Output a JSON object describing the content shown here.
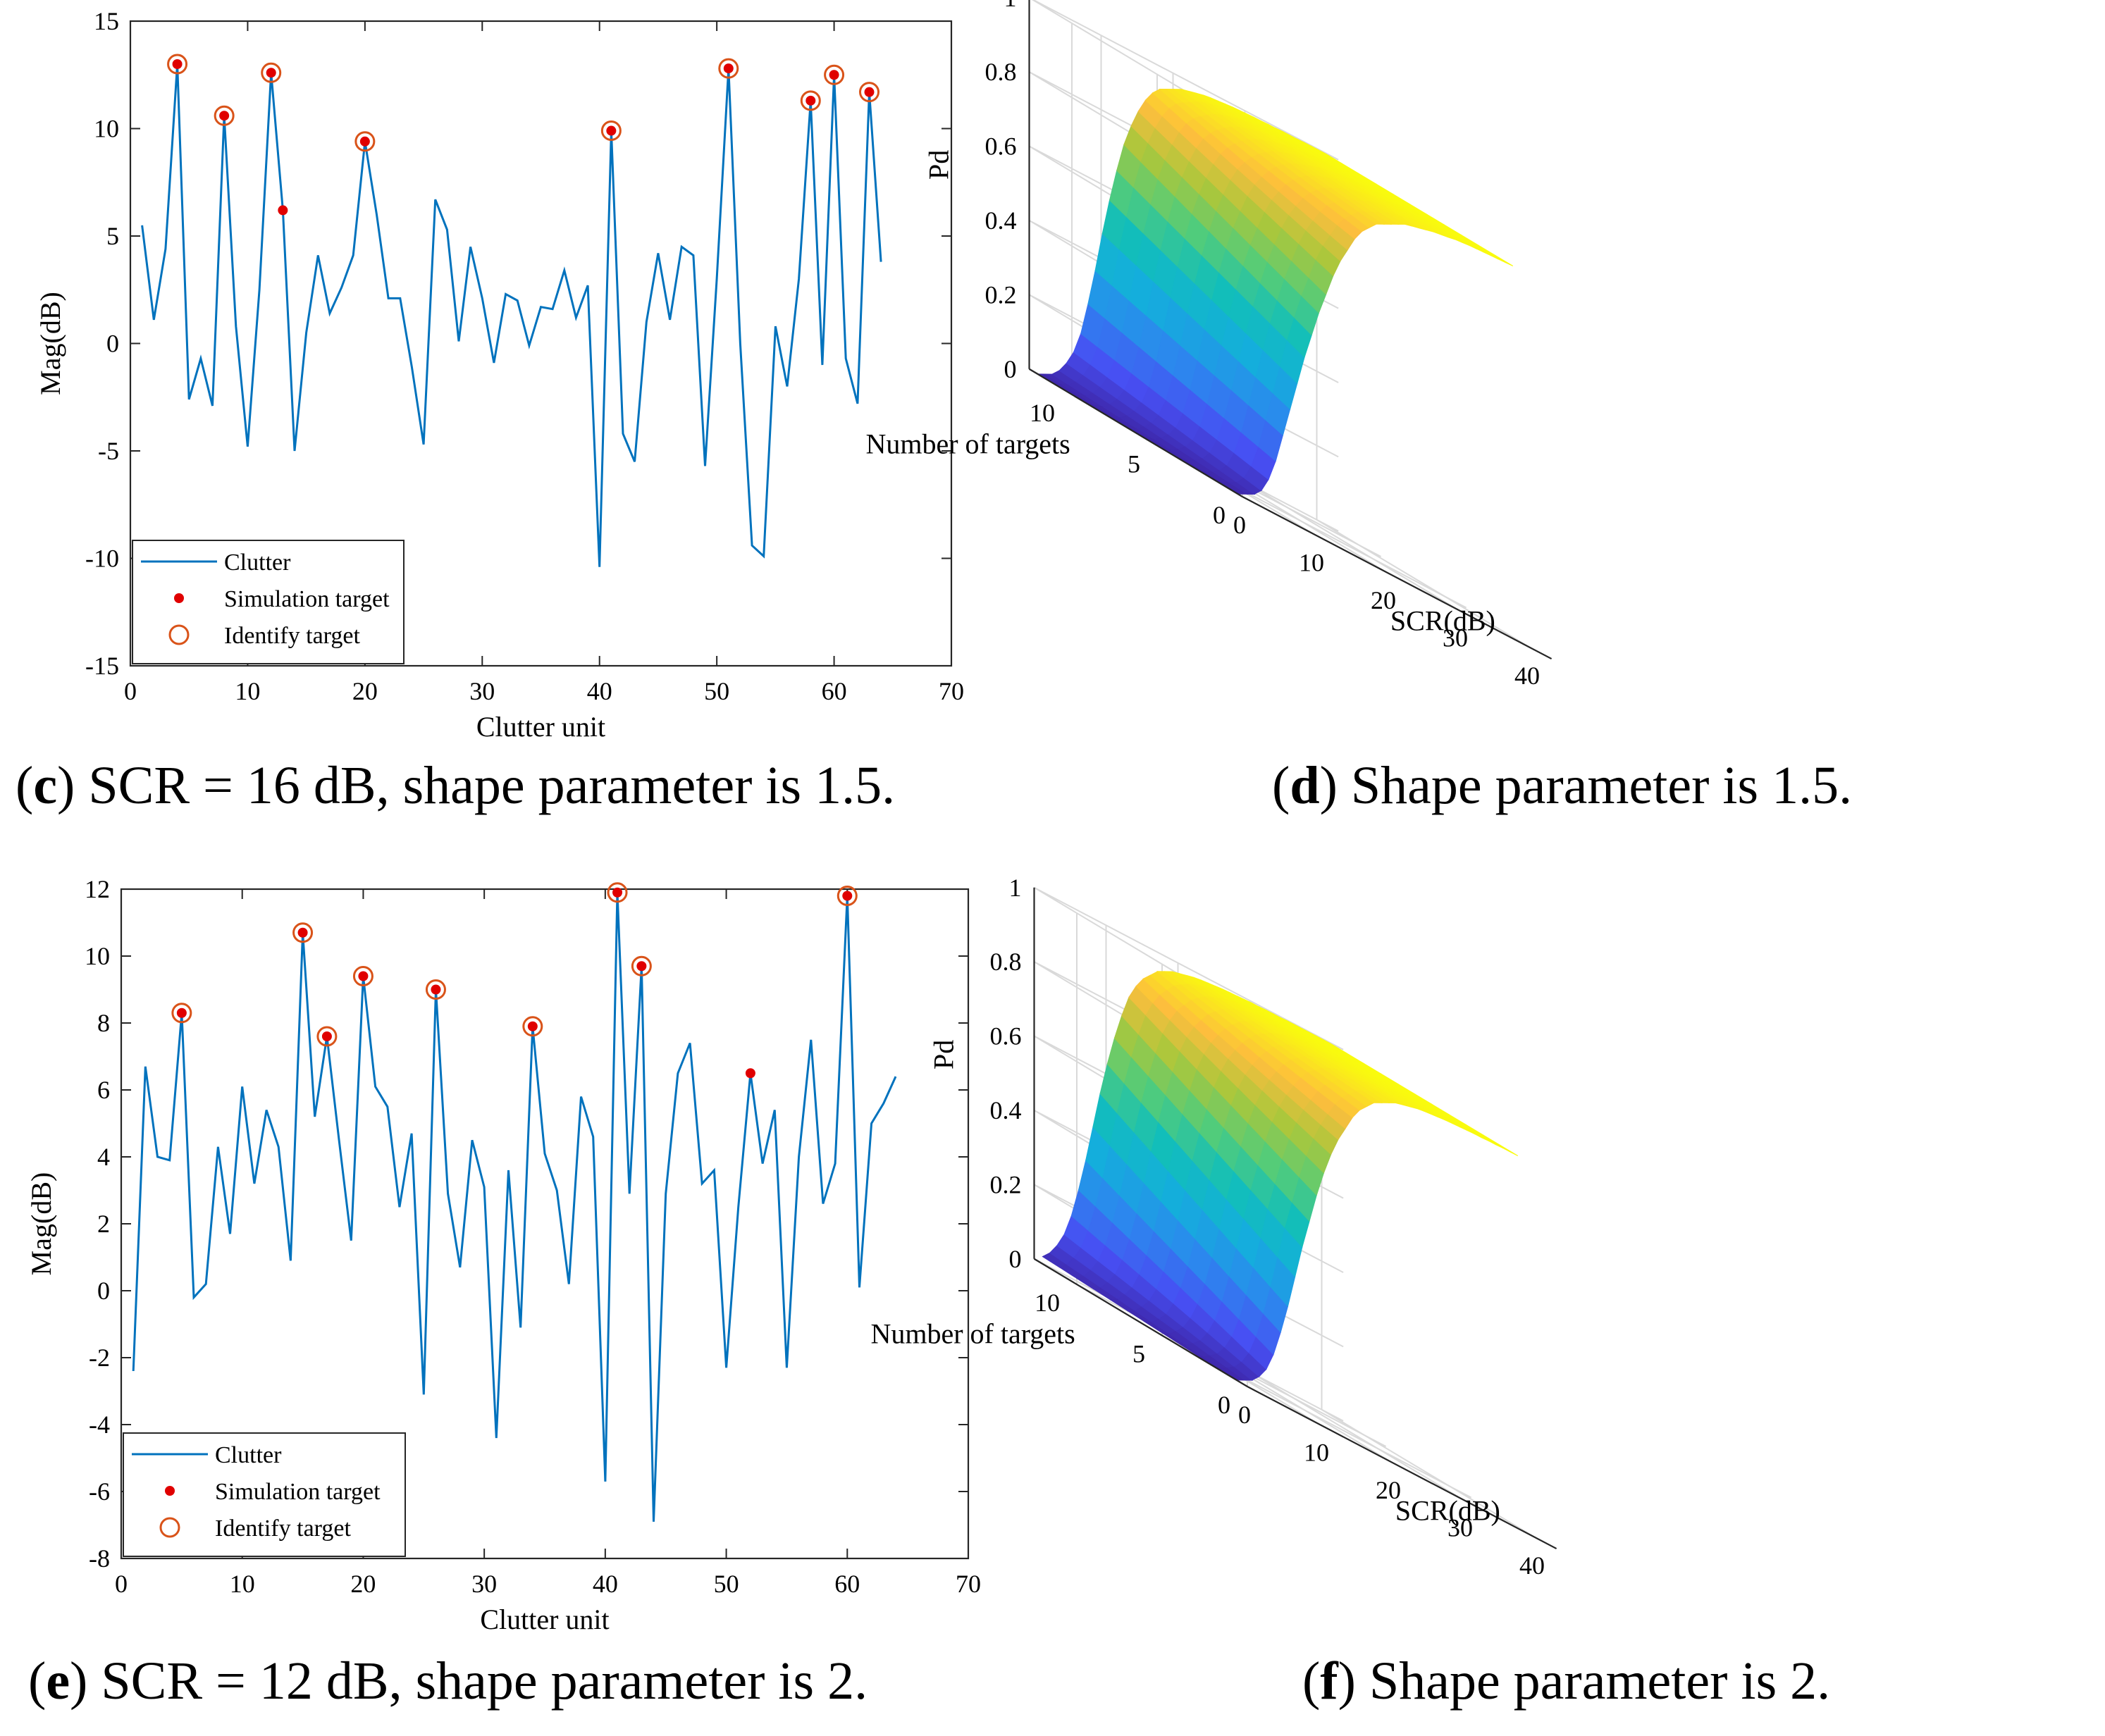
{
  "colors": {
    "clutter": "#0072BD",
    "simulation_target": "#E00000",
    "identify_target": "#D95319",
    "axis": "#262626",
    "grid": "#d9d9d9"
  },
  "captions": {
    "c": {
      "letter": "c",
      "text": " SCR = 16 dB, shape parameter is 1.5."
    },
    "d": {
      "letter": "d",
      "text": " Shape parameter is 1.5."
    },
    "e": {
      "letter": "e",
      "text": " SCR = 12 dB, shape parameter is 2."
    },
    "f": {
      "letter": "f",
      "text": " Shape parameter is 2."
    }
  },
  "chart_data": [
    {
      "id": "c",
      "type": "line",
      "xlabel": "Clutter unit",
      "ylabel": "Mag(dB)",
      "xlim": [
        0,
        70
      ],
      "ylim": [
        -15,
        15
      ],
      "xticks": [
        0,
        10,
        20,
        30,
        40,
        50,
        60,
        70
      ],
      "yticks": [
        -15,
        -10,
        -5,
        0,
        5,
        10,
        15
      ],
      "legend": {
        "position": "bottom-left",
        "entries": [
          "Clutter",
          "Simulation target",
          "Identify target"
        ]
      },
      "series": [
        {
          "name": "Clutter",
          "x": [
            1,
            2,
            3,
            4,
            5,
            6,
            7,
            8,
            9,
            10,
            11,
            12,
            13,
            14,
            15,
            16,
            17,
            18,
            19,
            20,
            21,
            22,
            23,
            24,
            25,
            26,
            27,
            28,
            29,
            30,
            31,
            32,
            33,
            34,
            35,
            36,
            37,
            38,
            39,
            40,
            41,
            42,
            43,
            44,
            45,
            46,
            47,
            48,
            49,
            50,
            51,
            52,
            53,
            54,
            55,
            56,
            57,
            58,
            59,
            60,
            61,
            62,
            63,
            64
          ],
          "y": [
            5.5,
            1.1,
            4.4,
            13.0,
            -2.6,
            -0.7,
            -2.9,
            10.6,
            0.8,
            -4.8,
            2.5,
            12.6,
            6.2,
            -5.0,
            0.5,
            4.1,
            1.4,
            2.6,
            4.1,
            9.4,
            6.0,
            2.1,
            2.1,
            -1.1,
            -4.7,
            6.7,
            5.3,
            0.1,
            4.5,
            2.1,
            -0.9,
            2.3,
            2.0,
            -0.1,
            1.7,
            1.6,
            3.4,
            1.2,
            2.7,
            -10.4,
            9.9,
            -4.2,
            -5.5,
            1.0,
            4.2,
            1.1,
            4.5,
            4.1,
            -5.7,
            3.0,
            12.8,
            0.0,
            -9.4,
            -9.9,
            0.8,
            -2.0,
            3.0,
            11.3,
            -1.0,
            12.5,
            -0.7,
            -2.8,
            11.7,
            3.8
          ]
        },
        {
          "name": "Simulation target",
          "x": [
            4,
            8,
            12,
            13,
            20,
            41,
            51,
            58,
            60,
            63
          ],
          "y": [
            13.0,
            10.6,
            12.6,
            6.2,
            9.4,
            9.9,
            12.8,
            11.3,
            12.5,
            11.7
          ]
        },
        {
          "name": "Identify target",
          "x": [
            4,
            8,
            12,
            20,
            41,
            51,
            58,
            60,
            63
          ],
          "y": [
            13.0,
            10.6,
            12.6,
            9.4,
            9.9,
            12.8,
            11.3,
            12.5,
            11.7
          ]
        }
      ]
    },
    {
      "id": "d",
      "type": "surface",
      "zlabel": "Pd",
      "xlabel": "SCR(dB)",
      "ylabel": "Number of targets",
      "xticks": [
        0,
        10,
        20,
        30,
        40
      ],
      "yticks": [
        0,
        5,
        10
      ],
      "zticks": [
        0,
        0.2,
        0.4,
        0.6,
        0.8,
        1
      ],
      "scr_values": [
        0,
        1,
        2,
        3,
        4,
        5,
        6,
        7,
        8,
        9,
        10,
        11,
        12,
        13,
        14,
        15,
        16,
        17,
        18,
        19,
        20,
        21,
        22,
        23,
        24,
        25,
        26,
        27,
        28,
        29,
        30,
        31,
        32,
        33,
        34,
        35,
        36,
        37,
        38,
        39,
        40
      ],
      "num_targets": [
        1,
        12
      ],
      "pd_near": [
        0.0,
        0.0,
        0.0,
        0.01,
        0.02,
        0.04,
        0.08,
        0.14,
        0.22,
        0.3,
        0.38,
        0.46,
        0.53,
        0.6,
        0.66,
        0.72,
        0.77,
        0.81,
        0.85,
        0.88,
        0.9,
        0.92,
        0.93,
        0.94,
        0.95,
        0.96,
        0.965,
        0.97,
        0.975,
        0.98,
        0.983,
        0.986,
        0.99,
        0.992,
        0.994,
        0.995,
        0.996,
        0.997,
        0.998,
        0.999,
        1.0
      ],
      "pd_far": [
        0.0,
        0.01,
        0.02,
        0.04,
        0.07,
        0.11,
        0.17,
        0.26,
        0.36,
        0.47,
        0.57,
        0.66,
        0.74,
        0.8,
        0.85,
        0.89,
        0.92,
        0.94,
        0.95,
        0.96,
        0.97,
        0.975,
        0.98,
        0.985,
        0.988,
        0.99,
        0.992,
        0.994,
        0.995,
        0.996,
        0.997,
        0.997,
        0.998,
        0.998,
        0.999,
        0.999,
        0.999,
        1.0,
        1.0,
        1.0,
        1.0
      ]
    },
    {
      "id": "e",
      "type": "line",
      "xlabel": "Clutter unit",
      "ylabel": "Mag(dB)",
      "xlim": [
        0,
        70
      ],
      "ylim": [
        -8,
        12
      ],
      "xticks": [
        0,
        10,
        20,
        30,
        40,
        50,
        60,
        70
      ],
      "yticks": [
        -8,
        -6,
        -4,
        -2,
        0,
        2,
        4,
        6,
        8,
        10,
        12
      ],
      "legend": {
        "position": "bottom-left",
        "entries": [
          "Clutter",
          "Simulation target",
          "Identify target"
        ]
      },
      "series": [
        {
          "name": "Clutter",
          "x": [
            1,
            2,
            3,
            4,
            5,
            6,
            7,
            8,
            9,
            10,
            11,
            12,
            13,
            14,
            15,
            16,
            17,
            18,
            19,
            20,
            21,
            22,
            23,
            24,
            25,
            26,
            27,
            28,
            29,
            30,
            31,
            32,
            33,
            34,
            35,
            36,
            37,
            38,
            39,
            40,
            41,
            42,
            43,
            44,
            45,
            46,
            47,
            48,
            49,
            50,
            51,
            52,
            53,
            54,
            55,
            56,
            57,
            58,
            59,
            60,
            61,
            62,
            63,
            64
          ],
          "y": [
            -2.4,
            6.7,
            4.0,
            3.9,
            8.3,
            -0.2,
            0.2,
            4.3,
            1.7,
            6.1,
            3.2,
            5.4,
            4.3,
            0.9,
            10.7,
            5.2,
            7.6,
            4.5,
            1.5,
            9.4,
            6.1,
            5.5,
            2.5,
            4.7,
            -3.1,
            9.0,
            2.9,
            0.7,
            4.5,
            3.1,
            -4.4,
            3.6,
            -1.1,
            7.9,
            4.1,
            3.0,
            0.2,
            5.8,
            4.6,
            -5.7,
            11.9,
            2.9,
            9.7,
            -6.9,
            2.9,
            6.5,
            7.4,
            3.2,
            3.6,
            -2.3,
            2.5,
            6.5,
            3.8,
            5.4,
            -2.3,
            4.0,
            7.5,
            2.6,
            3.8,
            11.8,
            0.1,
            5.0,
            5.6,
            6.4
          ]
        },
        {
          "name": "Simulation target",
          "x": [
            5,
            15,
            17,
            20,
            26,
            34,
            41,
            43,
            52,
            60
          ],
          "y": [
            8.3,
            10.7,
            7.6,
            9.4,
            9.0,
            7.9,
            11.9,
            9.7,
            6.5,
            11.8
          ]
        },
        {
          "name": "Identify target",
          "x": [
            5,
            15,
            17,
            20,
            26,
            34,
            41,
            43,
            60
          ],
          "y": [
            8.3,
            10.7,
            7.6,
            9.4,
            9.0,
            7.9,
            11.9,
            9.7,
            11.8
          ]
        }
      ]
    },
    {
      "id": "f",
      "type": "surface",
      "zlabel": "Pd",
      "xlabel": "SCR(dB)",
      "ylabel": "Number of targets",
      "xticks": [
        0,
        10,
        20,
        30,
        40
      ],
      "yticks": [
        0,
        5,
        10
      ],
      "zticks": [
        0,
        0.2,
        0.4,
        0.6,
        0.8,
        1
      ],
      "scr_values": [
        0,
        1,
        2,
        3,
        4,
        5,
        6,
        7,
        8,
        9,
        10,
        11,
        12,
        13,
        14,
        15,
        16,
        17,
        18,
        19,
        20,
        21,
        22,
        23,
        24,
        25,
        26,
        27,
        28,
        29,
        30,
        31,
        32,
        33,
        34,
        35,
        36,
        37,
        38,
        39,
        40
      ],
      "num_targets": [
        1,
        12
      ],
      "pd_near": [
        0.0,
        0.0,
        0.01,
        0.02,
        0.04,
        0.07,
        0.12,
        0.19,
        0.27,
        0.36,
        0.45,
        0.53,
        0.61,
        0.68,
        0.74,
        0.79,
        0.83,
        0.87,
        0.9,
        0.92,
        0.94,
        0.95,
        0.96,
        0.97,
        0.975,
        0.98,
        0.985,
        0.988,
        0.99,
        0.992,
        0.994,
        0.995,
        0.996,
        0.997,
        0.998,
        0.998,
        0.999,
        0.999,
        1.0,
        1.0,
        1.0
      ],
      "pd_far": [
        0.02,
        0.04,
        0.07,
        0.11,
        0.17,
        0.25,
        0.34,
        0.44,
        0.54,
        0.63,
        0.71,
        0.78,
        0.84,
        0.88,
        0.91,
        0.93,
        0.95,
        0.96,
        0.97,
        0.975,
        0.98,
        0.985,
        0.988,
        0.99,
        0.992,
        0.994,
        0.995,
        0.996,
        0.997,
        0.998,
        0.998,
        0.999,
        0.999,
        0.999,
        1.0,
        1.0,
        1.0,
        1.0,
        1.0,
        1.0,
        1.0
      ]
    }
  ]
}
